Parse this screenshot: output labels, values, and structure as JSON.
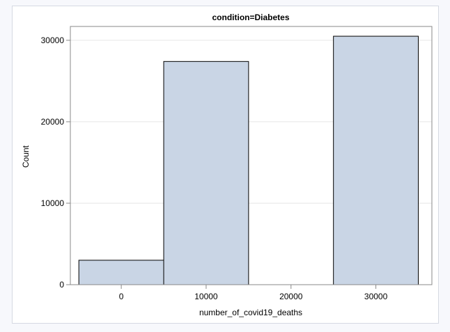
{
  "chart_data": {
    "type": "bar",
    "title": "condition=Diabetes",
    "xlabel": "number_of_covid19_deaths",
    "ylabel": "Count",
    "categories": [
      "0",
      "10000",
      "20000",
      "30000"
    ],
    "values": [
      3000,
      27400,
      0,
      30500
    ],
    "x_ticks": [
      0,
      10000,
      20000,
      30000
    ],
    "y_ticks": [
      0,
      10000,
      20000,
      30000
    ],
    "ylim": [
      0,
      31700
    ],
    "grid": "horizontal",
    "bar_color": "#c9d5e5",
    "bar_edge_color": "#000000"
  }
}
